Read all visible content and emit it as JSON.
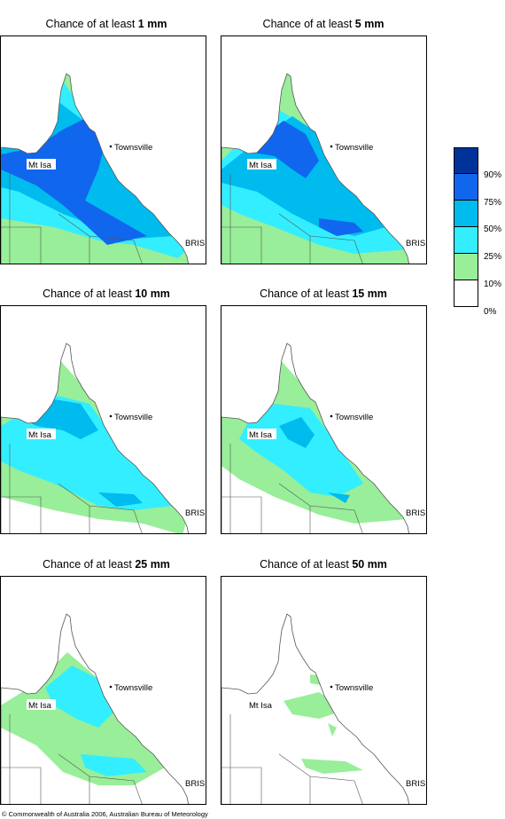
{
  "panels": [
    {
      "title_prefix": "Chance of at least",
      "amount": "1 mm"
    },
    {
      "title_prefix": "Chance of at least",
      "amount": "5 mm"
    },
    {
      "title_prefix": "Chance of at least",
      "amount": "10 mm"
    },
    {
      "title_prefix": "Chance of at least",
      "amount": "15 mm"
    },
    {
      "title_prefix": "Chance of at least",
      "amount": "25 mm"
    },
    {
      "title_prefix": "Chance of at least",
      "amount": "50 mm"
    }
  ],
  "places": {
    "townsville": "Townsville",
    "mt_isa": "Mt Isa",
    "brisbane": "BRIS"
  },
  "legend": {
    "labels": [
      "90%",
      "75%",
      "50%",
      "25%",
      "10%",
      "0%"
    ],
    "colors": [
      "#003399",
      "#1166ee",
      "#00bbee",
      "#33eeff",
      "#99ee99",
      "#ffffff"
    ]
  },
  "copyright": "© Commonwealth of Australia 2006, Australian Bureau of Meteorology"
}
